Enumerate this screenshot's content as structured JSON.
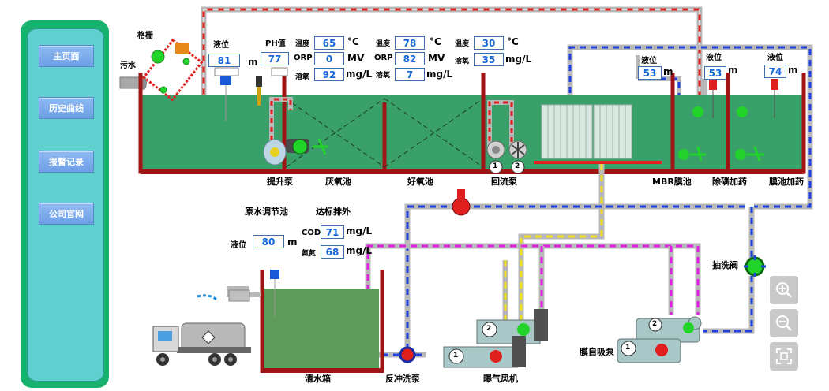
{
  "nav": {
    "home": "主页面",
    "history": "历史曲线",
    "alarm": "报警记录",
    "company": "公司官网"
  },
  "labels": {
    "grille": "格栅",
    "sewage": "污水",
    "level": "液位",
    "ph": "PH值",
    "temp": "温度",
    "orp": "ORP",
    "do": "溶氧",
    "cod": "COD",
    "ammonia": "氨氮",
    "m": "m",
    "celsius": "°C",
    "mv": "MV",
    "mgl": "mg/L"
  },
  "values": {
    "inlet_level": "81",
    "ph": "77",
    "t1_temp": "65",
    "t1_orp": "0",
    "t1_do": "92",
    "t2_temp": "78",
    "t2_orp": "82",
    "t2_do": "7",
    "t3_temp": "30",
    "t3_do": "35",
    "mbr_level": "53",
    "p_level": "53",
    "m_level": "74",
    "tank_level": "80",
    "out_cod": "71",
    "out_ammonia": "68"
  },
  "captions": {
    "lift_pump": "提升泵",
    "anoxic": "厌氧池",
    "aerobic": "好氧池",
    "return_pump": "回流泵",
    "mbr": "MBR膜池",
    "p_removal": "除磷加药",
    "membrane_dose": "膜池加药",
    "raw_adjust": "原水调节池",
    "discharge": "达标排外",
    "clean_tank": "清水箱",
    "backwash": "反冲洗泵",
    "blower": "曝气风机",
    "self_priming": "膜自吸泵",
    "suction_valve": "抽洗阀"
  },
  "pump_numbers": [
    "1",
    "2"
  ],
  "colors": {
    "tank_water": "#3aa06a",
    "tank_wall": "#a01416",
    "clean_water": "#5e9a5a",
    "running": "#22d42a",
    "stopped": "#e8161c",
    "pipe_red": "#e0201e",
    "pipe_blue": "#2040e0",
    "pipe_yellow": "#f0e020",
    "pipe_magenta": "#e020e0"
  }
}
